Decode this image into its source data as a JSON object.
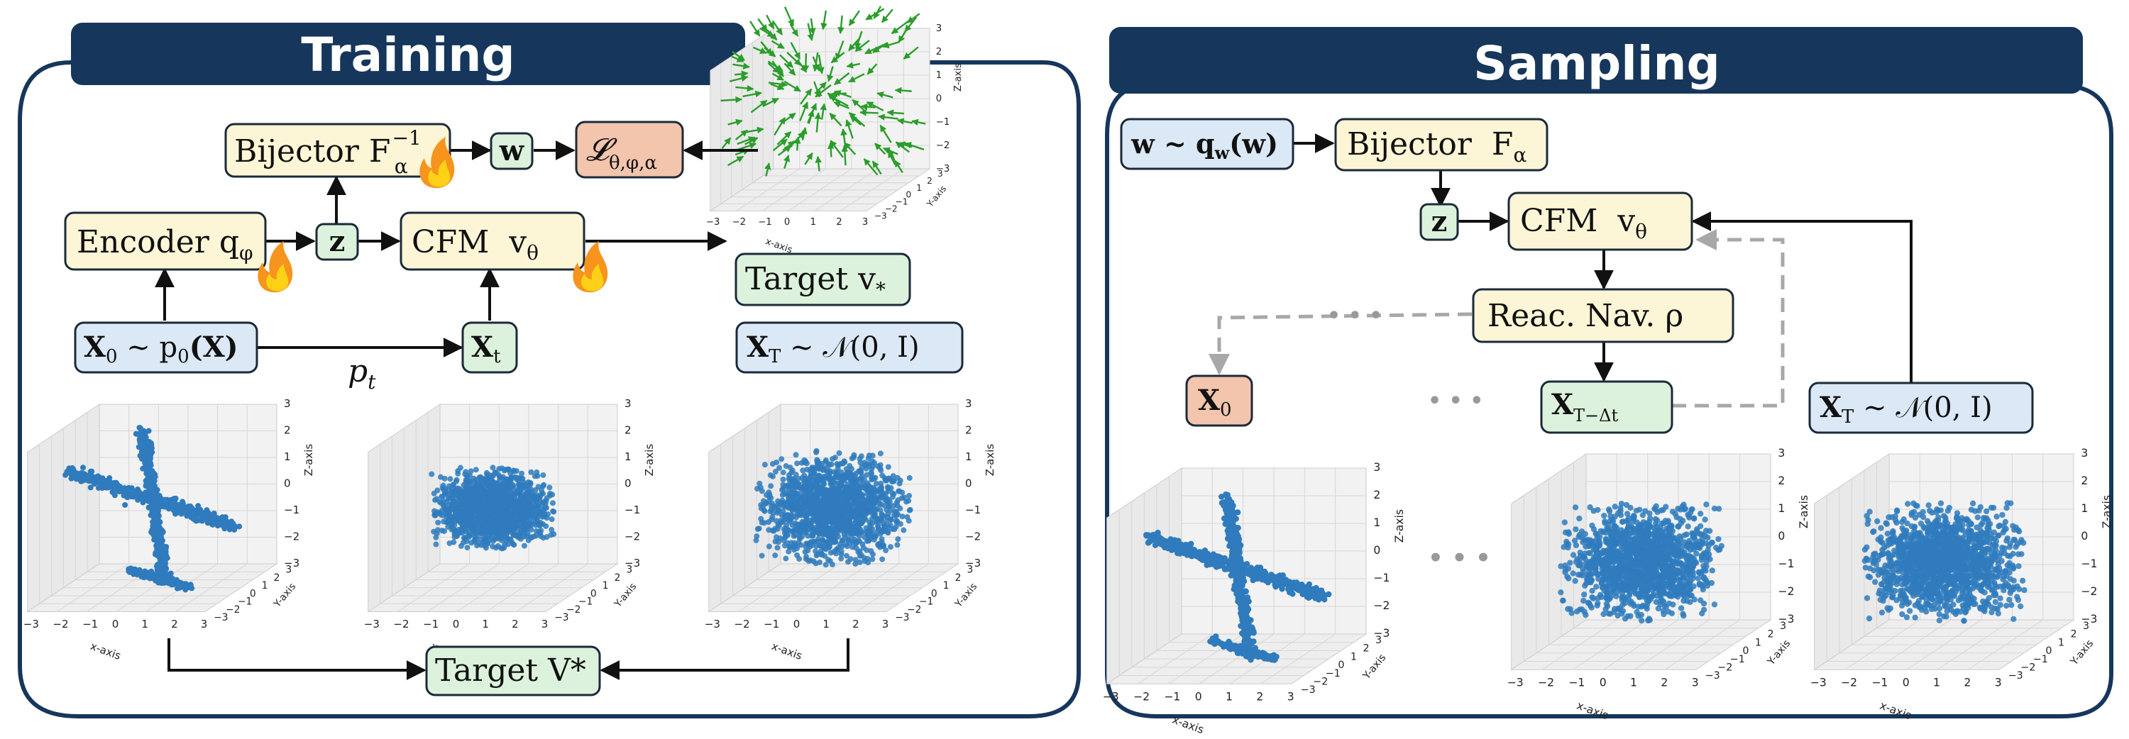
{
  "colors": {
    "header_bg": "#16365c",
    "panel_stroke": "#16365c",
    "yellow_box": "#fdf6d6",
    "green_box": "#dcf2dc",
    "salmon_box": "#f3c5ad",
    "blue_box": "#dbe8f6",
    "box_stroke": "#1b2a3a",
    "points": "#2f7bbd",
    "vectors": "#2a9d2a",
    "dashed": "#a8a8a8"
  },
  "training": {
    "title": "Training",
    "bijector_inv": "Bijector F",
    "bijector_inv_sub": "α",
    "bijector_inv_sup": "−1",
    "w": "w",
    "loss": "𝓛",
    "loss_sub": "θ,φ,α",
    "encoder": "Encoder q",
    "encoder_sub": "φ",
    "z": "z",
    "cfm": "CFM  v",
    "cfm_sub": "θ",
    "target_v": "Target v",
    "target_v_sub": "*",
    "x0": "X",
    "x0_sub": "0",
    "x0_rest": " ~ p",
    "x0_rest_sub": "0",
    "x0_tail": "(X)",
    "xt": "X",
    "xt_sub": "t",
    "pt": "p",
    "pt_sub": "t",
    "xT": "X",
    "xT_sub": "T",
    "xT_rest": " ~ 𝒩(0, I)",
    "target_V": "Target V*"
  },
  "sampling": {
    "title": "Sampling",
    "w_dist": "w ~ q",
    "w_dist_sub": "w",
    "w_dist_tail": "(w)",
    "bijector": "Bijector  F",
    "bijector_sub": "α",
    "z": "z",
    "cfm": "CFM  v",
    "cfm_sub": "θ",
    "reac": "Reac. Nav. ρ",
    "x0": "X",
    "x0_sub": "0",
    "xtdt": "X",
    "xtdt_sub": "T−Δt",
    "xT": "X",
    "xT_sub": "T",
    "xT_rest": " ~ 𝒩(0, I)",
    "dots": "• • •"
  },
  "axes": {
    "x_label": "x-axis",
    "y_label": "Y-axis",
    "z_label": "Z-axis",
    "ticks": [
      "−3",
      "−2",
      "−1",
      "0",
      "1",
      "2",
      "3"
    ]
  }
}
